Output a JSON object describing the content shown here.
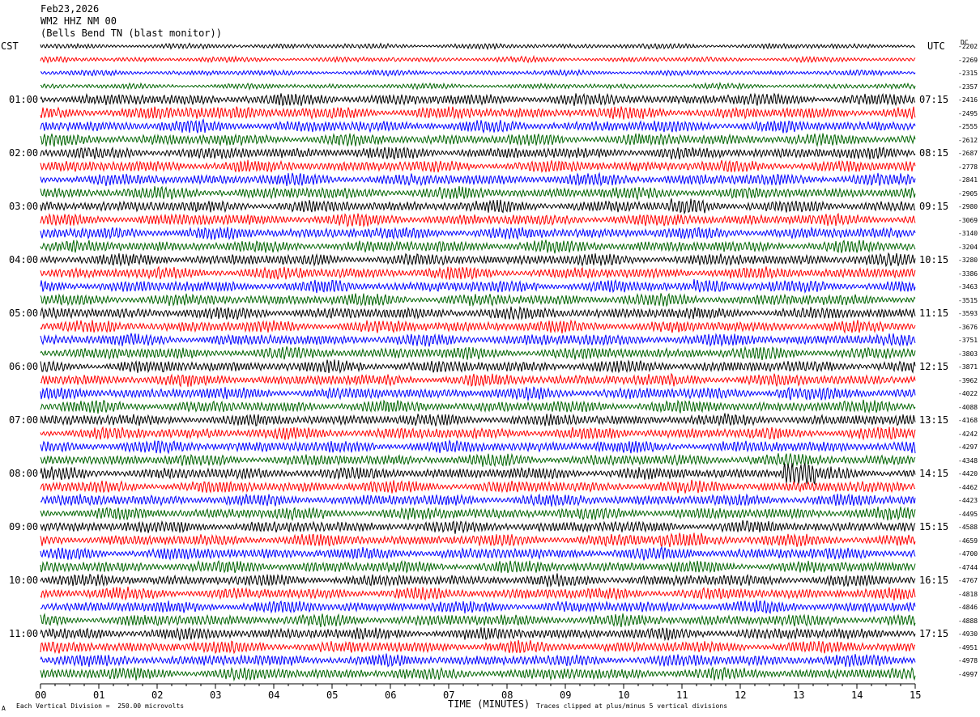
{
  "header": {
    "date": "Feb23,2026",
    "station": "WM2 HHZ NM 00",
    "location": "(Bells Bend TN (blast monitor))"
  },
  "corners": {
    "left_zone": "CST",
    "right_zone": "UTC",
    "dc_label": "DC"
  },
  "footer": {
    "scale_note": "Each Vertical Division =  250.00 microvolts",
    "clip_note": "Traces clipped at plus/minus 5 vertical divisions",
    "mark": "A"
  },
  "chart_data": {
    "type": "line",
    "title": "",
    "xlabel": "TIME (MINUTES)",
    "ylabel": "",
    "xlim": [
      0,
      15
    ],
    "x_ticks": [
      "00",
      "01",
      "02",
      "03",
      "04",
      "05",
      "06",
      "07",
      "08",
      "09",
      "10",
      "11",
      "12",
      "13",
      "14",
      "15"
    ],
    "grid": false,
    "trace_colors": [
      "#000000",
      "#ff0000",
      "#0000ff",
      "#006400"
    ],
    "trace_count": 48,
    "left_hour_labels": [
      "01:00",
      "02:00",
      "03:00",
      "04:00",
      "05:00",
      "06:00",
      "07:00",
      "08:00",
      "09:00",
      "10:00",
      "11:00"
    ],
    "right_hour_labels": [
      "07:15",
      "08:15",
      "09:15",
      "10:15",
      "11:15",
      "12:15",
      "13:15",
      "14:15",
      "15:15",
      "16:15",
      "17:15"
    ],
    "dc_offsets": [
      "-2202",
      "-2269",
      "-2315",
      "-2357",
      "-2416",
      "-2495",
      "-2555",
      "-2612",
      "-2687",
      "-2778",
      "-2841",
      "-2905",
      "-2980",
      "-3069",
      "-3140",
      "-3204",
      "-3280",
      "-3386",
      "-3463",
      "-3515",
      "-3593",
      "-3676",
      "-3751",
      "-3803",
      "-3871",
      "-3962",
      "-4022",
      "-4088",
      "-4168",
      "-4242",
      "-4297",
      "-4348",
      "-4420",
      "-4462",
      "-4423",
      "-4495",
      "-4588",
      "-4659",
      "-4700",
      "-4744",
      "-4767",
      "-4818",
      "-4846",
      "-4888",
      "-4930",
      "-4951",
      "-4978",
      "-4997"
    ],
    "events": [
      {
        "trace": 5,
        "minute_start": 2.5,
        "minute_end": 3.6,
        "amplitude": "elevated"
      },
      {
        "trace": 12,
        "minute_start": 10.8,
        "minute_end": 11.4,
        "amplitude": "elevated"
      },
      {
        "trace": 18,
        "minute_start": 11.2,
        "minute_end": 11.8,
        "amplitude": "elevated"
      },
      {
        "trace": 26,
        "minute_start": 12.6,
        "minute_end": 12.9,
        "amplitude": "elevated"
      },
      {
        "trace": 32,
        "minute_start": 12.7,
        "minute_end": 13.3,
        "amplitude": "high"
      },
      {
        "trace": 37,
        "minute_start": 10.6,
        "minute_end": 11.4,
        "amplitude": "elevated"
      }
    ]
  }
}
